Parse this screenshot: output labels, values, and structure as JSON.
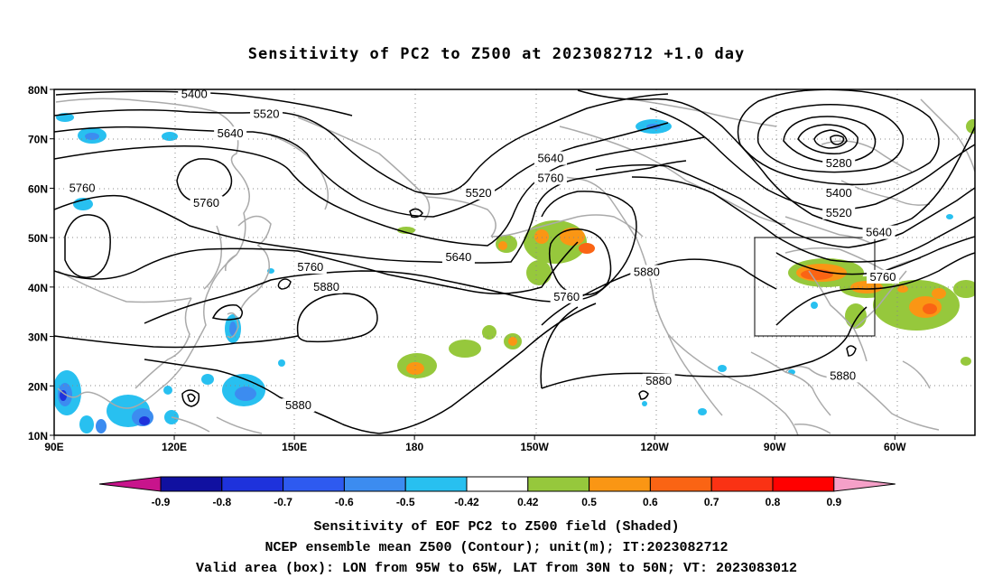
{
  "title": "Sensitivity of PC2 to Z500 at 2023082712 +1.0 day",
  "axes": {
    "lat_labels": [
      "80N",
      "70N",
      "60N",
      "50N",
      "40N",
      "30N",
      "20N",
      "10N"
    ],
    "lon_labels": [
      "90E",
      "120E",
      "150E",
      "180",
      "150W",
      "120W",
      "90W",
      "60W"
    ]
  },
  "contour_labels": [
    {
      "text": "5400",
      "lon": 125,
      "lat": 79
    },
    {
      "text": "5520",
      "lon": 143,
      "lat": 75
    },
    {
      "text": "5640",
      "lon": 134,
      "lat": 71
    },
    {
      "text": "5520",
      "lon": 196,
      "lat": 59
    },
    {
      "text": "5640",
      "lon": 214,
      "lat": 66
    },
    {
      "text": "5760",
      "lon": 214,
      "lat": 62
    },
    {
      "text": "5280",
      "lon": 286,
      "lat": 65
    },
    {
      "text": "5400",
      "lon": 286,
      "lat": 59
    },
    {
      "text": "5520",
      "lon": 286,
      "lat": 55
    },
    {
      "text": "5640",
      "lon": 296,
      "lat": 51
    },
    {
      "text": "5760",
      "lon": 297,
      "lat": 42
    },
    {
      "text": "5880",
      "lon": 287,
      "lat": 22
    },
    {
      "text": "5760",
      "lon": 97,
      "lat": 60
    },
    {
      "text": "5760",
      "lon": 128,
      "lat": 57
    },
    {
      "text": "5760",
      "lon": 154,
      "lat": 44
    },
    {
      "text": "5880",
      "lon": 158,
      "lat": 40
    },
    {
      "text": "5640",
      "lon": 191,
      "lat": 46
    },
    {
      "text": "5760",
      "lon": 218,
      "lat": 38
    },
    {
      "text": "5880",
      "lon": 238,
      "lat": 43
    },
    {
      "text": "5880",
      "lon": 241,
      "lat": 21
    },
    {
      "text": "5880",
      "lon": 151,
      "lat": 16
    }
  ],
  "colorbar": {
    "labels": [
      "-0.9",
      "-0.8",
      "-0.7",
      "-0.6",
      "-0.5",
      "-0.42",
      "0.42",
      "0.5",
      "0.6",
      "0.7",
      "0.8",
      "0.9"
    ],
    "colors": [
      "#1010a0",
      "#1e32dc",
      "#2e5af0",
      "#3c8cf0",
      "#28c0f0",
      "#ffffff",
      "#96c83c",
      "#fa9614",
      "#fa6414",
      "#fa3214",
      "#ff0000"
    ],
    "low_color": "#c8148c",
    "high_color": "#f5a0c8"
  },
  "valid_box": {
    "lon_min": -95,
    "lon_max": -65,
    "lat_min": 30,
    "lat_max": 50
  },
  "captions": [
    "Sensitivity of EOF PC2 to Z500 field (Shaded)",
    "NCEP ensemble mean Z500 (Contour); unit(m); IT:2023082712",
    "Valid area (box): LON from 95W to 65W, LAT from 30N to 50N; VT: 2023083012"
  ]
}
